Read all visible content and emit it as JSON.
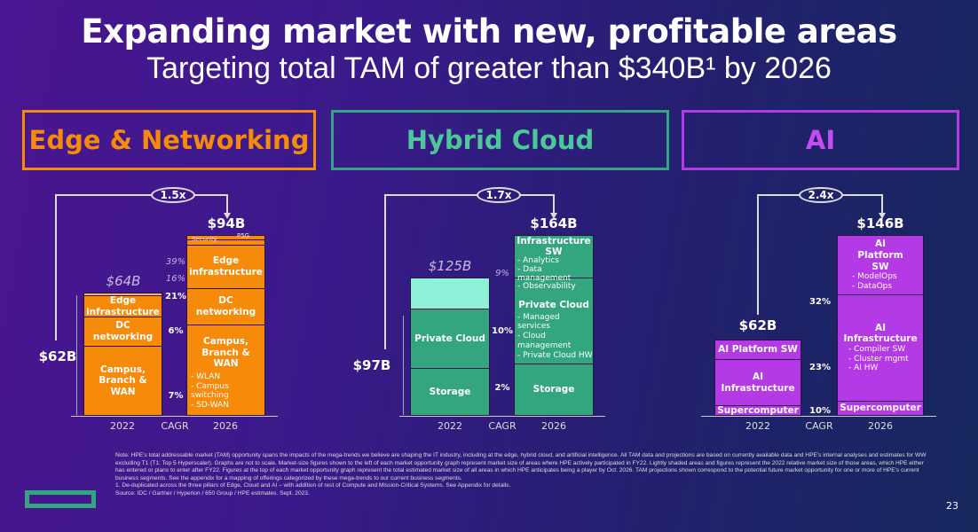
{
  "header": {
    "title": "Expanding market with new, profitable areas",
    "subtitle": "Targeting total TAM of greater than $340B¹ by 2026"
  },
  "colors": {
    "edge": "#f58a0b",
    "cloud": "#33a57f",
    "cloud_light": "#8ff0d8",
    "ai": "#b43ae6"
  },
  "chart_data": [
    {
      "type": "bar",
      "title": "Edge & Networking",
      "categories": [
        "2022",
        "2026"
      ],
      "middle_label": "CAGR",
      "multiplier": "1.5x",
      "total_2022_participated": "$62B",
      "total_2022": "$64B",
      "total_2026": "$94B",
      "segments_2022": [
        "Edge infrastructure",
        "DC networking",
        "Campus, Branch & WAN"
      ],
      "segments_2026": [
        {
          "label": "Security"
        },
        {
          "label": "P5G"
        },
        {
          "label": "Edge infrastructure"
        },
        {
          "label": "DC networking"
        },
        {
          "label": "Campus, Branch & WAN",
          "items": [
            "- WLAN",
            "- Campus switching",
            "- SD-WAN"
          ]
        }
      ],
      "cagr": {
        "security": "39%",
        "p5g": "16%",
        "edge_infrastructure": "21%",
        "dc_networking": "6%",
        "campus": "7%"
      }
    },
    {
      "type": "bar",
      "title": "Hybrid Cloud",
      "categories": [
        "2022",
        "2026"
      ],
      "middle_label": "CAGR",
      "multiplier": "1.7x",
      "total_2022_participated": "$97B",
      "total_2022": "$125B",
      "total_2026": "$164B",
      "segments_2022": [
        "Private Cloud",
        "Storage"
      ],
      "segments_2026": [
        {
          "label": "Infrastructure SW",
          "items": [
            "- Analytics",
            "- Data management",
            "- Observability"
          ]
        },
        {
          "label": "Private Cloud",
          "items": [
            "- Managed services",
            "- Cloud management",
            "- Private Cloud HW"
          ]
        },
        {
          "label": "Storage"
        }
      ],
      "cagr": {
        "infrastructure_sw": "9%",
        "private_cloud": "10%",
        "storage": "2%"
      }
    },
    {
      "type": "bar",
      "title": "AI",
      "categories": [
        "2022",
        "2026"
      ],
      "middle_label": "CAGR",
      "multiplier": "2.4x",
      "total_2022": "$62B",
      "total_2026": "$146B",
      "segments_2022": [
        "AI Platform SW",
        "AI Infrastructure",
        "Supercomputer"
      ],
      "segments_2026": [
        {
          "label": "AI Platform SW",
          "items": [
            "- ModelOps",
            "- DataOps"
          ]
        },
        {
          "label": "AI Infrastructure",
          "items": [
            "- Compiler SW",
            "- Cluster mgmt",
            "- AI HW"
          ]
        },
        {
          "label": "Supercomputer"
        }
      ],
      "cagr": {
        "platform_sw": "32%",
        "infrastructure": "23%",
        "supercomputer": "10%"
      }
    }
  ],
  "notes": {
    "note": "Note: HPE's total addressable market (TAM) opportunity spans the impacts of the mega-trends we believe are shaping the IT industry, including at the edge, hybrid cloud, and artificial intelligence. All TAM data and projections are based on currently available data and HPE's internal analyses and estimates for WW excluding T1 (T1: Top 5 Hyperscaler). Graphs are not to scale. Market-size figures shown to the left of each market opportunity graph represent market size of areas where HPE actively participated in FY22. Lightly shaded areas and figures represent the 2022 relative market size of those areas, which HPE either has entered or plans to enter after FY22. Figures at the top of each market opportunity graph represent the total estimated market size of all areas in which HPE anticipates being a player by Oct. 2026. TAM projections shown correspond to the potential future market opportunity for one or more of HPE's current business segments. See the appendix for a mapping of offerings categorized by these mega-trends to our current business segments.",
    "footnote": "1.  De-duplicated across the three pillars of Edge, Cloud and AI – with addition of rest of Compute and Mission-Critical Systems. See Appendix for details.",
    "source": "Source: IDC / Gartner / Hyperion / 650 Group / HPE estimates. Sept. 2023."
  },
  "page_number": "23"
}
